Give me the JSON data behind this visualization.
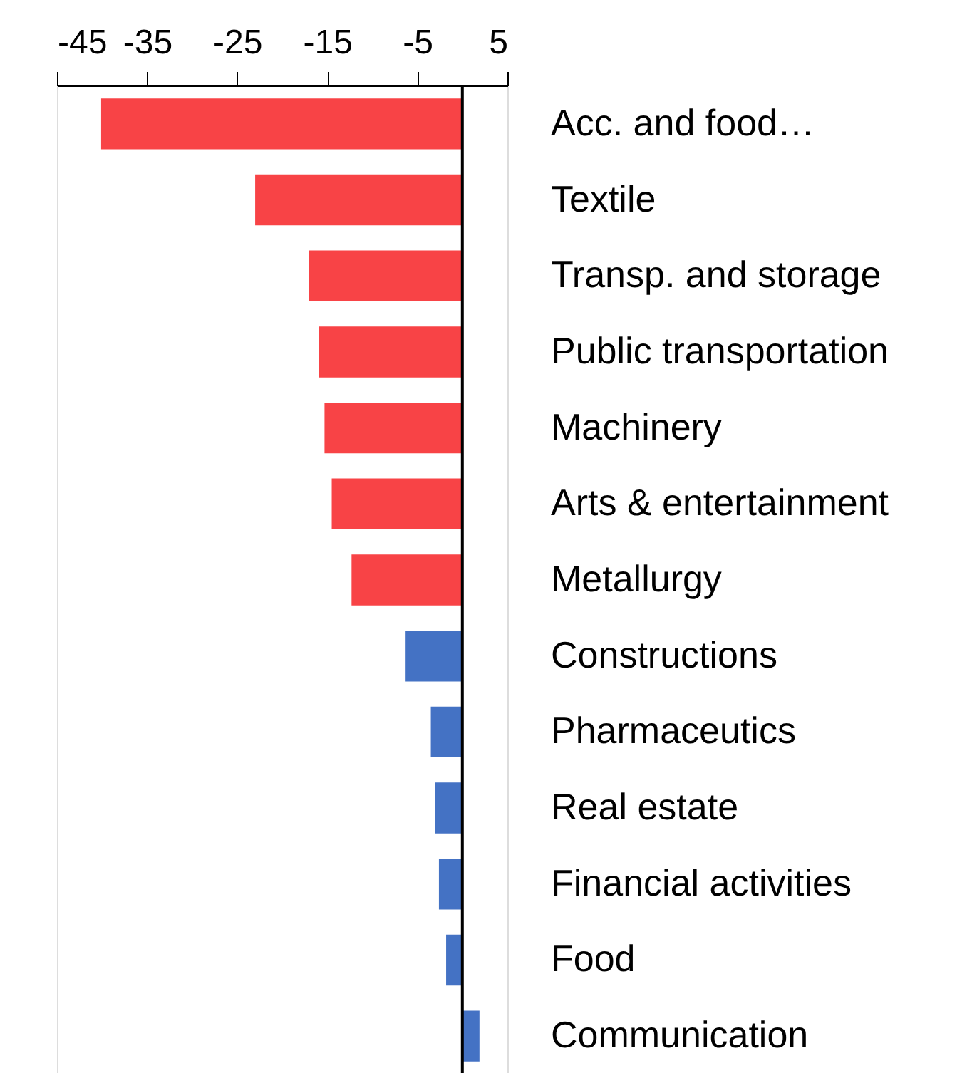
{
  "chart_data": {
    "type": "bar",
    "orientation": "horizontal",
    "categories": [
      "Acc. and food…",
      "Textile",
      "Transp. and storage",
      "Public transportation",
      "Machinery",
      "Arts & entertainment",
      "Metallurgy",
      "Constructions",
      "Pharmaceutics",
      "Real estate",
      "Financial activities",
      "Food",
      "Communication"
    ],
    "values": [
      -40.1,
      -23.0,
      -17.0,
      -15.9,
      -15.3,
      -14.5,
      -12.3,
      -6.3,
      -3.5,
      -3.0,
      -2.6,
      -1.8,
      1.9
    ],
    "colors": [
      "#f84346",
      "#f84346",
      "#f84346",
      "#f84346",
      "#f84346",
      "#f84346",
      "#f84346",
      "#4472c4",
      "#4472c4",
      "#4472c4",
      "#4472c4",
      "#4472c4",
      "#4472c4"
    ],
    "xlim": [
      -45,
      5
    ],
    "xticks": [
      -45,
      -35,
      -25,
      -15,
      -5,
      5
    ],
    "ref_lines": [
      {
        "axis": "x",
        "value": 0,
        "color": "#000000"
      }
    ],
    "grid": false
  }
}
